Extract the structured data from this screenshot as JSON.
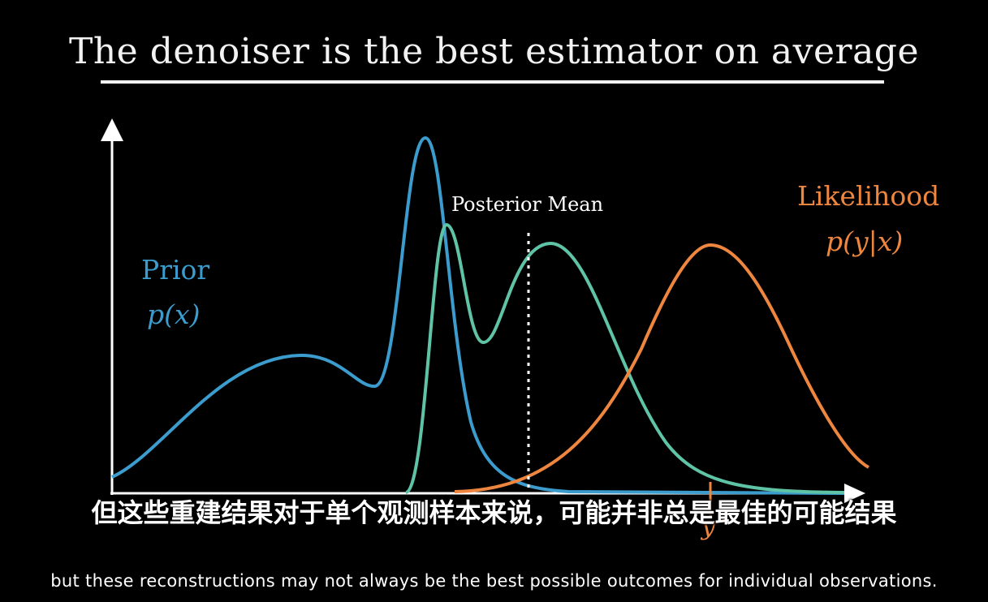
{
  "title": "The denoiser is the best estimator on average",
  "diagram": {
    "prior_label": "Prior",
    "prior_formula": "p(x)",
    "likelihood_label": "Likelihood",
    "likelihood_formula": "p(y|x)",
    "posterior_mean_label": "Posterior Mean",
    "observation_label": "y"
  },
  "colors": {
    "prior": "#3b9ccd",
    "posterior": "#5fc4a6",
    "likelihood": "#ee8640",
    "axis": "#ffffff",
    "background": "#000000"
  },
  "subtitles": {
    "chinese": "但这些重建结果对于单个观测样本来说，可能并非总是最佳的可能结果",
    "english": "but these reconstructions may not always be the best possible outcomes for individual observations."
  }
}
